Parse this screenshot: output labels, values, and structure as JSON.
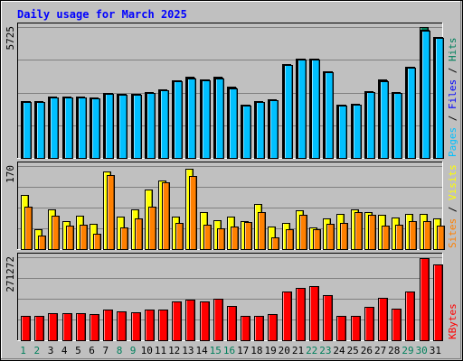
{
  "colors": {
    "background": "#c0c0c0",
    "panel": "#c0c0c0",
    "title": "#0000ff",
    "hits": "#00805c",
    "files": "#0000ff",
    "pages": "#00c0ff",
    "visits": "#ffff00",
    "sites": "#ff8000",
    "kbytes": "#ff0000",
    "weekend_day": "#00805c",
    "weekday": "#000000"
  },
  "chart_data": {
    "type": "bar",
    "title": "Daily usage for March 2025",
    "categories": [
      "1",
      "2",
      "3",
      "4",
      "5",
      "6",
      "7",
      "8",
      "9",
      "10",
      "11",
      "12",
      "13",
      "14",
      "15",
      "16",
      "17",
      "18",
      "19",
      "20",
      "21",
      "22",
      "23",
      "24",
      "25",
      "26",
      "27",
      "28",
      "29",
      "30",
      "31"
    ],
    "weekend_days": [
      "1",
      "2",
      "8",
      "9",
      "15",
      "16",
      "22",
      "23",
      "29",
      "30"
    ],
    "panels": [
      {
        "id": "hits-files-pages",
        "max_label": "5725",
        "ymax": 5725,
        "label_parts": [
          "Pages",
          "Files",
          "Hits"
        ],
        "series": [
          {
            "name": "Hits",
            "values": [
              2500,
              2480,
              2700,
              2700,
              2700,
              2640,
              2850,
              2820,
              2820,
              2880,
              2990,
              3400,
              3540,
              3440,
              3540,
              3100,
              2340,
              2500,
              2550,
              4100,
              4360,
              4360,
              3800,
              2340,
              2350,
              2920,
              3420,
              2890,
              4000,
              5725,
              5300
            ]
          },
          {
            "name": "Files",
            "values": [
              2470,
              2460,
              2660,
              2660,
              2660,
              2610,
              2830,
              2800,
              2790,
              2860,
              2970,
              3380,
              3500,
              3420,
              3510,
              3070,
              2320,
              2460,
              2530,
              4070,
              4340,
              4340,
              3790,
              2320,
              2330,
              2900,
              3390,
              2860,
              3980,
              5620,
              5280
            ]
          },
          {
            "name": "Pages",
            "values": [
              2450,
              2440,
              2640,
              2640,
              2640,
              2590,
              2810,
              2780,
              2770,
              2840,
              2950,
              3350,
              3480,
              3400,
              3480,
              3050,
              2300,
              2440,
              2510,
              4050,
              4320,
              4320,
              3770,
              2300,
              2310,
              2880,
              3370,
              2840,
              3960,
              5550,
              5260
            ]
          }
        ]
      },
      {
        "id": "visits-sites",
        "max_label": "170",
        "ymax": 170,
        "label_parts": [
          "Sites",
          "Visits"
        ],
        "series": [
          {
            "name": "Visits",
            "values": [
              110,
              40,
              82,
              58,
              68,
              52,
              158,
              66,
              82,
              122,
              140,
              66,
              164,
              75,
              60,
              66,
              58,
              92,
              46,
              53,
              80,
              44,
              62,
              72,
              82,
              76,
              70,
              64,
              72,
              72,
              62
            ]
          },
          {
            "name": "Sites",
            "values": [
              86,
              28,
              68,
              48,
              50,
              32,
              152,
              44,
              62,
              86,
              136,
              54,
              150,
              50,
              42,
              46,
              56,
              76,
              24,
              40,
              70,
              40,
              52,
              54,
              76,
              70,
              48,
              50,
              58,
              58,
              48
            ]
          }
        ]
      },
      {
        "id": "kbytes",
        "max_label": "271272",
        "ymax": 271272,
        "label_parts": [
          "KBytes"
        ],
        "series": [
          {
            "name": "KBytes",
            "values": [
              80000,
              80000,
              88000,
              88000,
              88000,
              85000,
              100000,
              95000,
              92000,
              100000,
              100000,
              126000,
              134000,
              126000,
              137000,
              111000,
              80000,
              80000,
              86000,
              158000,
              170000,
              176000,
              146000,
              80000,
              80000,
              108000,
              138000,
              103000,
              158000,
              268000,
              248000
            ]
          }
        ]
      }
    ]
  }
}
